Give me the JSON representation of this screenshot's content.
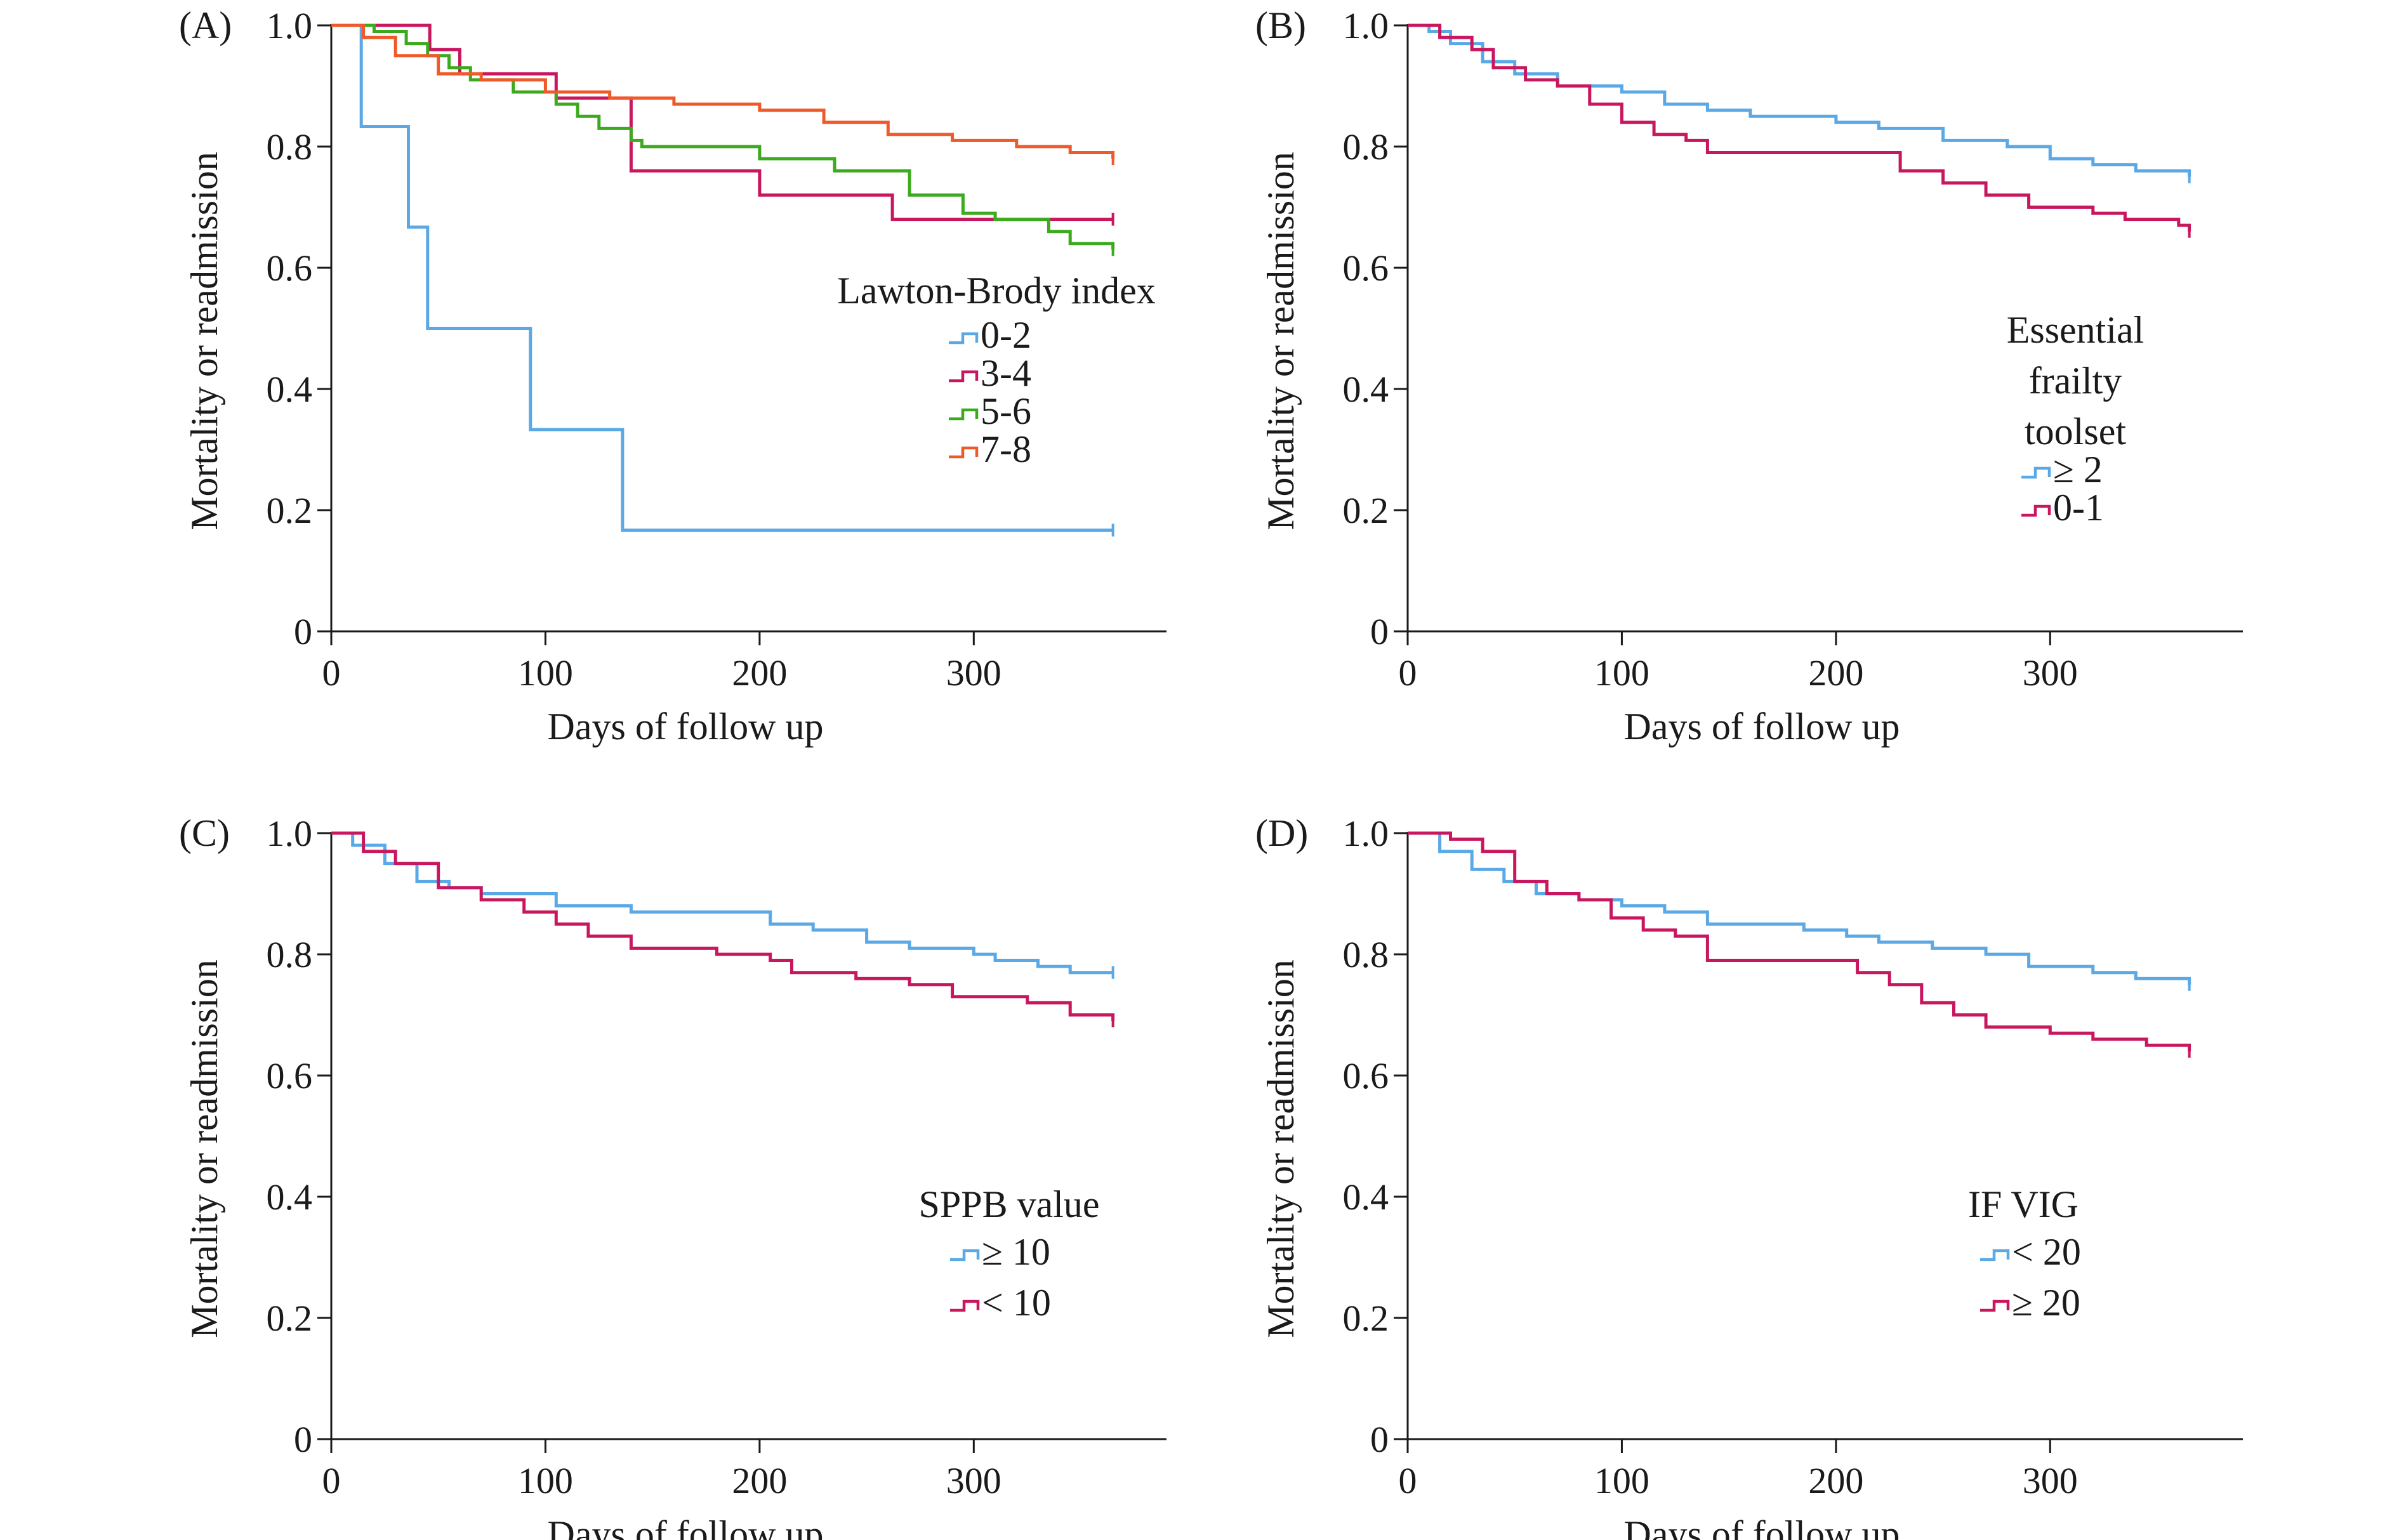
{
  "colors": {
    "blue": "#5aa9e6",
    "crimson": "#c8175f",
    "green": "#3caa1e",
    "orange": "#ee5a2a"
  },
  "chart_data": [
    {
      "type": "line",
      "panel_label": "(A)",
      "title": "",
      "xlabel": "Days of follow up",
      "ylabel": "Mortality or readmission",
      "xlim": [
        0,
        390
      ],
      "ylim": [
        0,
        1.0
      ],
      "x_ticks": [
        0,
        100,
        200,
        300
      ],
      "y_ticks": [
        0,
        0.2,
        0.4,
        0.6,
        0.8,
        1.0
      ],
      "y_tick_labels": [
        "0",
        "0.2",
        "0.4",
        "0.6",
        "0.8",
        "1.0"
      ],
      "legend_title": "Lawton-Brody index",
      "legend_placement": "right",
      "series": [
        {
          "name": "0-2",
          "color": "blue",
          "points": [
            [
              0,
              1.0
            ],
            [
              14,
              1.0
            ],
            [
              14,
              0.833
            ],
            [
              36,
              0.833
            ],
            [
              36,
              0.667
            ],
            [
              45,
              0.667
            ],
            [
              45,
              0.5
            ],
            [
              93,
              0.5
            ],
            [
              93,
              0.333
            ],
            [
              136,
              0.333
            ],
            [
              136,
              0.167
            ],
            [
              365,
              0.167
            ]
          ]
        },
        {
          "name": "3-4",
          "color": "crimson",
          "points": [
            [
              0,
              1.0
            ],
            [
              46,
              1.0
            ],
            [
              46,
              0.96
            ],
            [
              60,
              0.96
            ],
            [
              60,
              0.92
            ],
            [
              105,
              0.92
            ],
            [
              105,
              0.88
            ],
            [
              140,
              0.88
            ],
            [
              140,
              0.76
            ],
            [
              200,
              0.76
            ],
            [
              200,
              0.72
            ],
            [
              262,
              0.72
            ],
            [
              262,
              0.68
            ],
            [
              365,
              0.68
            ]
          ]
        },
        {
          "name": "5-6",
          "color": "green",
          "points": [
            [
              0,
              1.0
            ],
            [
              20,
              0.99
            ],
            [
              35,
              0.97
            ],
            [
              45,
              0.95
            ],
            [
              55,
              0.93
            ],
            [
              65,
              0.91
            ],
            [
              85,
              0.89
            ],
            [
              105,
              0.87
            ],
            [
              115,
              0.85
            ],
            [
              125,
              0.83
            ],
            [
              140,
              0.81
            ],
            [
              145,
              0.8
            ],
            [
              200,
              0.78
            ],
            [
              235,
              0.76
            ],
            [
              270,
              0.72
            ],
            [
              295,
              0.69
            ],
            [
              310,
              0.68
            ],
            [
              335,
              0.66
            ],
            [
              345,
              0.64
            ],
            [
              365,
              0.63
            ]
          ]
        },
        {
          "name": "7-8",
          "color": "orange",
          "points": [
            [
              0,
              1.0
            ],
            [
              15,
              0.98
            ],
            [
              30,
              0.95
            ],
            [
              50,
              0.92
            ],
            [
              70,
              0.91
            ],
            [
              100,
              0.89
            ],
            [
              130,
              0.88
            ],
            [
              160,
              0.87
            ],
            [
              200,
              0.86
            ],
            [
              230,
              0.84
            ],
            [
              260,
              0.82
            ],
            [
              290,
              0.81
            ],
            [
              320,
              0.8
            ],
            [
              345,
              0.79
            ],
            [
              365,
              0.78
            ]
          ]
        }
      ]
    },
    {
      "type": "line",
      "panel_label": "(B)",
      "title": "",
      "xlabel": "Days of follow up",
      "ylabel": "Mortality or readmission",
      "xlim": [
        0,
        390
      ],
      "ylim": [
        0,
        1.0
      ],
      "x_ticks": [
        0,
        100,
        200,
        300
      ],
      "y_ticks": [
        0,
        0.2,
        0.4,
        0.6,
        0.8,
        1.0
      ],
      "y_tick_labels": [
        "0",
        "0.2",
        "0.4",
        "0.6",
        "0.8",
        "1.0"
      ],
      "legend_title": "Essential frailty toolset",
      "legend_title_lines": [
        "Essential",
        "frailty",
        "toolset"
      ],
      "legend_placement": "right",
      "series": [
        {
          "name": "≥ 2",
          "color": "blue",
          "points": [
            [
              0,
              1.0
            ],
            [
              10,
              0.99
            ],
            [
              20,
              0.97
            ],
            [
              35,
              0.94
            ],
            [
              50,
              0.92
            ],
            [
              70,
              0.9
            ],
            [
              100,
              0.89
            ],
            [
              120,
              0.87
            ],
            [
              140,
              0.86
            ],
            [
              160,
              0.85
            ],
            [
              190,
              0.85
            ],
            [
              200,
              0.84
            ],
            [
              220,
              0.83
            ],
            [
              250,
              0.81
            ],
            [
              280,
              0.8
            ],
            [
              300,
              0.78
            ],
            [
              320,
              0.77
            ],
            [
              340,
              0.76
            ],
            [
              365,
              0.75
            ]
          ]
        },
        {
          "name": "0-1",
          "color": "crimson",
          "points": [
            [
              0,
              1.0
            ],
            [
              15,
              0.98
            ],
            [
              30,
              0.96
            ],
            [
              40,
              0.93
            ],
            [
              55,
              0.91
            ],
            [
              70,
              0.9
            ],
            [
              85,
              0.87
            ],
            [
              100,
              0.84
            ],
            [
              115,
              0.82
            ],
            [
              130,
              0.81
            ],
            [
              140,
              0.79
            ],
            [
              160,
              0.79
            ],
            [
              210,
              0.79
            ],
            [
              230,
              0.76
            ],
            [
              250,
              0.74
            ],
            [
              270,
              0.72
            ],
            [
              290,
              0.7
            ],
            [
              320,
              0.69
            ],
            [
              335,
              0.68
            ],
            [
              360,
              0.67
            ],
            [
              365,
              0.66
            ]
          ]
        }
      ]
    },
    {
      "type": "line",
      "panel_label": "(C)",
      "title": "",
      "xlabel": "Days of follow up",
      "ylabel": "Mortality or readmission",
      "xlim": [
        0,
        390
      ],
      "ylim": [
        0,
        1.0
      ],
      "x_ticks": [
        0,
        100,
        200,
        300
      ],
      "y_ticks": [
        0,
        0.2,
        0.4,
        0.6,
        0.8,
        1.0
      ],
      "y_tick_labels": [
        "0",
        "0.2",
        "0.4",
        "0.6",
        "0.8",
        "1.0"
      ],
      "legend_title": "SPPB value",
      "legend_placement": "right",
      "series": [
        {
          "name": "≥ 10",
          "color": "blue",
          "points": [
            [
              0,
              1.0
            ],
            [
              10,
              0.98
            ],
            [
              25,
              0.95
            ],
            [
              40,
              0.92
            ],
            [
              55,
              0.91
            ],
            [
              70,
              0.9
            ],
            [
              100,
              0.9
            ],
            [
              105,
              0.88
            ],
            [
              130,
              0.88
            ],
            [
              140,
              0.87
            ],
            [
              200,
              0.87
            ],
            [
              205,
              0.85
            ],
            [
              225,
              0.84
            ],
            [
              250,
              0.82
            ],
            [
              270,
              0.81
            ],
            [
              300,
              0.8
            ],
            [
              310,
              0.79
            ],
            [
              330,
              0.78
            ],
            [
              345,
              0.77
            ],
            [
              365,
              0.77
            ]
          ]
        },
        {
          "name": "< 10",
          "color": "crimson",
          "points": [
            [
              0,
              1.0
            ],
            [
              15,
              0.97
            ],
            [
              30,
              0.95
            ],
            [
              50,
              0.91
            ],
            [
              70,
              0.89
            ],
            [
              90,
              0.87
            ],
            [
              105,
              0.85
            ],
            [
              120,
              0.83
            ],
            [
              140,
              0.81
            ],
            [
              160,
              0.81
            ],
            [
              180,
              0.8
            ],
            [
              205,
              0.79
            ],
            [
              215,
              0.77
            ],
            [
              245,
              0.76
            ],
            [
              270,
              0.75
            ],
            [
              290,
              0.73
            ],
            [
              325,
              0.72
            ],
            [
              345,
              0.7
            ],
            [
              360,
              0.7
            ],
            [
              365,
              0.69
            ]
          ]
        }
      ]
    },
    {
      "type": "line",
      "panel_label": "(D)",
      "title": "",
      "xlabel": "Days of follow up",
      "ylabel": "Mortality or readmission",
      "xlim": [
        0,
        390
      ],
      "ylim": [
        0,
        1.0
      ],
      "x_ticks": [
        0,
        100,
        200,
        300
      ],
      "y_ticks": [
        0,
        0.2,
        0.4,
        0.6,
        0.8,
        1.0
      ],
      "y_tick_labels": [
        "0",
        "0.2",
        "0.4",
        "0.6",
        "0.8",
        "1.0"
      ],
      "legend_title": "IF VIG",
      "legend_placement": "right",
      "series": [
        {
          "name": "< 20",
          "color": "blue",
          "points": [
            [
              0,
              1.0
            ],
            [
              15,
              0.97
            ],
            [
              30,
              0.94
            ],
            [
              45,
              0.92
            ],
            [
              60,
              0.9
            ],
            [
              80,
              0.89
            ],
            [
              100,
              0.88
            ],
            [
              120,
              0.87
            ],
            [
              140,
              0.85
            ],
            [
              160,
              0.85
            ],
            [
              185,
              0.84
            ],
            [
              205,
              0.83
            ],
            [
              220,
              0.82
            ],
            [
              245,
              0.81
            ],
            [
              270,
              0.8
            ],
            [
              290,
              0.78
            ],
            [
              320,
              0.77
            ],
            [
              340,
              0.76
            ],
            [
              365,
              0.75
            ]
          ]
        },
        {
          "name": "≥ 20",
          "color": "crimson",
          "points": [
            [
              0,
              1.0
            ],
            [
              20,
              0.99
            ],
            [
              35,
              0.97
            ],
            [
              50,
              0.92
            ],
            [
              65,
              0.9
            ],
            [
              80,
              0.89
            ],
            [
              95,
              0.86
            ],
            [
              110,
              0.84
            ],
            [
              125,
              0.83
            ],
            [
              140,
              0.79
            ],
            [
              170,
              0.79
            ],
            [
              200,
              0.79
            ],
            [
              210,
              0.77
            ],
            [
              225,
              0.75
            ],
            [
              240,
              0.72
            ],
            [
              255,
              0.7
            ],
            [
              270,
              0.68
            ],
            [
              300,
              0.67
            ],
            [
              320,
              0.66
            ],
            [
              345,
              0.65
            ],
            [
              360,
              0.65
            ],
            [
              365,
              0.64
            ]
          ]
        }
      ]
    }
  ]
}
